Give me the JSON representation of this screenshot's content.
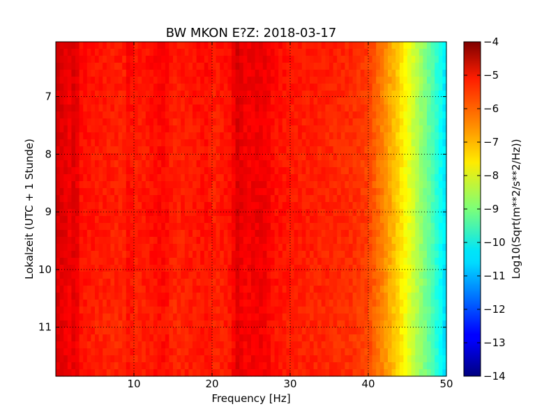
{
  "chart_data": {
    "type": "heatmap",
    "title": "BW MKON E?Z: 2018-03-17",
    "xlabel": "Frequency [Hz]",
    "ylabel": "Lokalzeit (UTC + 1 Stunde)",
    "xlim": [
      0,
      50
    ],
    "ylim": [
      6.05,
      11.85
    ],
    "x_ticks": [
      10,
      20,
      30,
      40,
      50
    ],
    "x_tick_labels": [
      "10",
      "20",
      "30",
      "40",
      "50"
    ],
    "y_ticks": [
      7,
      8,
      9,
      10,
      11
    ],
    "y_tick_labels": [
      "7",
      "8",
      "9",
      "10",
      "11"
    ],
    "y_inverted": true,
    "grid": true,
    "colormap": "jet",
    "colorbar": {
      "label": "Log10(Sqrt(m**2/s**2/Hz))",
      "range": [
        -14,
        -4
      ],
      "ticks": [
        -4,
        -5,
        -6,
        -7,
        -8,
        -9,
        -10,
        -11,
        -12,
        -13,
        -14
      ],
      "tick_labels": [
        "−4",
        "−5",
        "−6",
        "−7",
        "−8",
        "−9",
        "−10",
        "−11",
        "−12",
        "−13",
        "−14"
      ]
    },
    "frequency_profile": {
      "frequency_hz": [
        0,
        1,
        2,
        2.5,
        3,
        5,
        9,
        9.4,
        10,
        14,
        15,
        19.6,
        20,
        22.5,
        23.3,
        24,
        26.5,
        28,
        30,
        35,
        38,
        40,
        42,
        44,
        46,
        48,
        50
      ],
      "log10_amplitude": [
        -4.9,
        -5.0,
        -5.2,
        -4.8,
        -5.4,
        -5.5,
        -5.6,
        -5.2,
        -5.6,
        -5.3,
        -5.6,
        -5.4,
        -5.6,
        -5.4,
        -4.9,
        -5.2,
        -5.1,
        -5.4,
        -5.5,
        -5.6,
        -5.7,
        -5.9,
        -6.6,
        -7.4,
        -8.4,
        -9.4,
        -10.6
      ]
    },
    "time_profile": {
      "local_hour": [
        6.05,
        7.0,
        8.0,
        9.0,
        10.0,
        11.0,
        11.85
      ],
      "log10_offset": [
        0.1,
        0.05,
        0.0,
        0.05,
        0.0,
        -0.05,
        0.0
      ]
    }
  }
}
